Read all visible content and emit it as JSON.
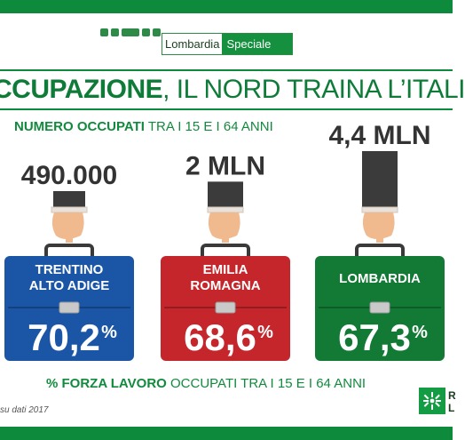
{
  "header": {
    "brand_left": "Lombardia",
    "brand_right": "Speciale",
    "social_icons": [
      "facebook-icon",
      "twitter-icon",
      "youtube-icon",
      "instagram-icon",
      "flickr-icon"
    ]
  },
  "headline": {
    "strong": "CCUPAZIONE",
    "rest": ", IL NORD TRAINA L’ITALI"
  },
  "subtitle": {
    "strong": "NUMERO OCCUPATI",
    "rest": " TRA I 15 E I 64 ANNI"
  },
  "footer": {
    "strong": "% FORZA LAVORO",
    "rest": " OCCUPATI TRA I 15 E I 64 ANNI"
  },
  "source": "su dati 2017",
  "logo": {
    "line1": "R",
    "line2": "L"
  },
  "colors": {
    "green": "#0d8a3c",
    "blue": "#1b56a6",
    "red": "#c4262b",
    "dark_green": "#137a35",
    "bar_dark": "#3b3b3b"
  },
  "chart_data": {
    "type": "bar",
    "categories": [
      "TRENTINO\nALTO ADIGE",
      "EMILIA\nROMAGNA",
      "LOMBARDIA"
    ],
    "series": [
      {
        "values": [
          490000,
          2000000,
          4400000
        ],
        "labels": [
          "490.000",
          "2 MLN",
          "4,4 MLN"
        ]
      },
      {
        "values": [
          70.2,
          68.6,
          67.3
        ],
        "labels": [
          "70,2",
          "68,6",
          "67,3"
        ],
        "unit": "%"
      }
    ],
    "box_colors": [
      "#1b56a6",
      "#c4262b",
      "#137a35"
    ]
  }
}
